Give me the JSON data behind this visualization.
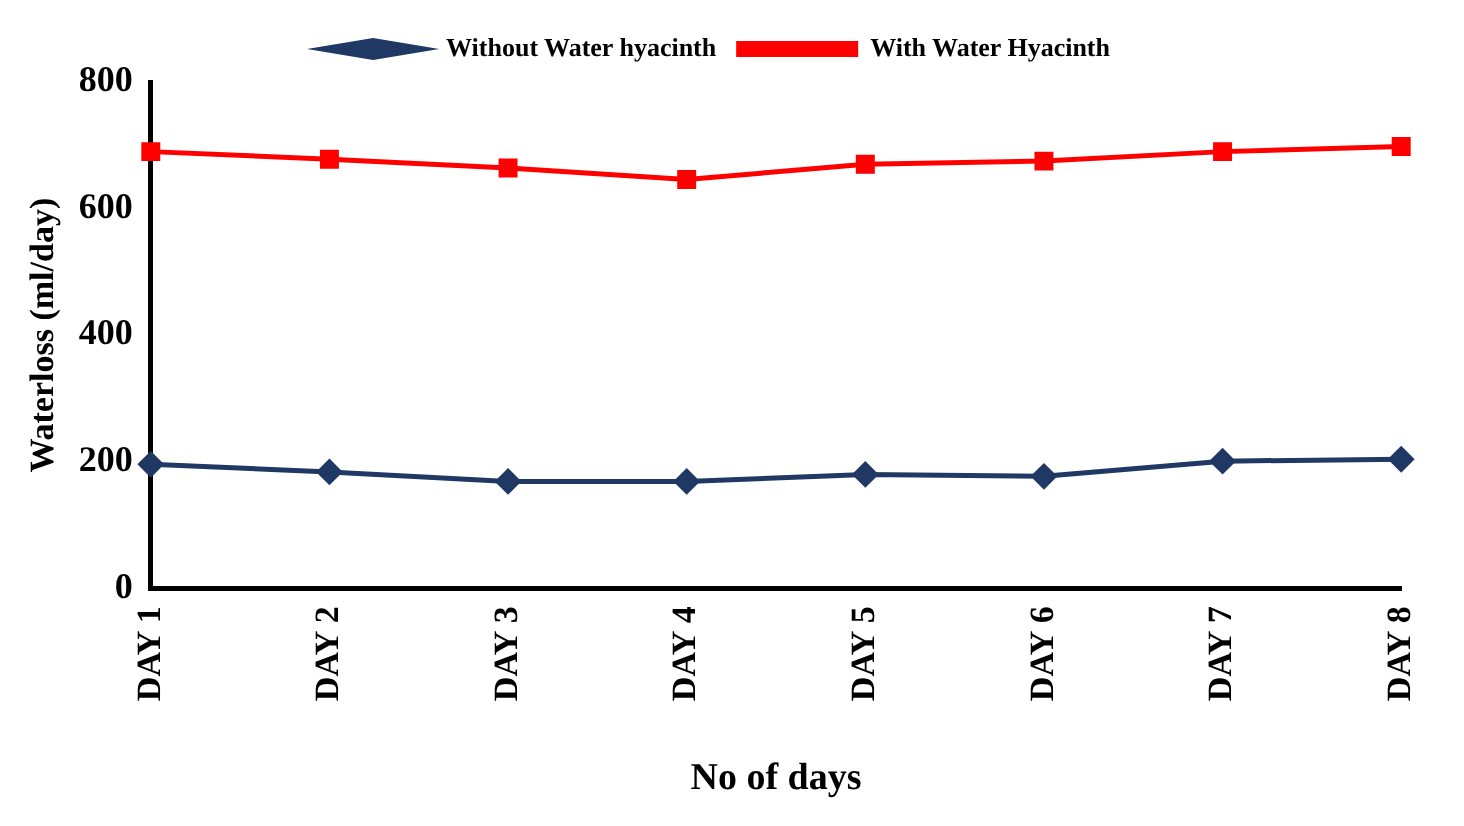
{
  "chart_data": {
    "type": "line",
    "xlabel": "No of days",
    "ylabel": "Waterloss (ml/day)",
    "categories": [
      "DAY 1",
      "DAY 2",
      "DAY 3",
      "DAY 4",
      "DAY 5",
      "DAY 6",
      "DAY 7",
      "DAY 8"
    ],
    "series": [
      {
        "name": "Without Water hyacinth",
        "color": "#1f3864",
        "marker": "diamond",
        "values": [
          196,
          184,
          169,
          169,
          180,
          177,
          201,
          204
        ]
      },
      {
        "name": "With Water Hyacinth",
        "color": "#ff0000",
        "marker": "square",
        "values": [
          690,
          678,
          664,
          646,
          670,
          675,
          690,
          698
        ]
      }
    ],
    "ylim": [
      0,
      800
    ],
    "yticks": [
      0,
      200,
      400,
      600,
      800
    ],
    "grid": false,
    "legend": "top"
  }
}
